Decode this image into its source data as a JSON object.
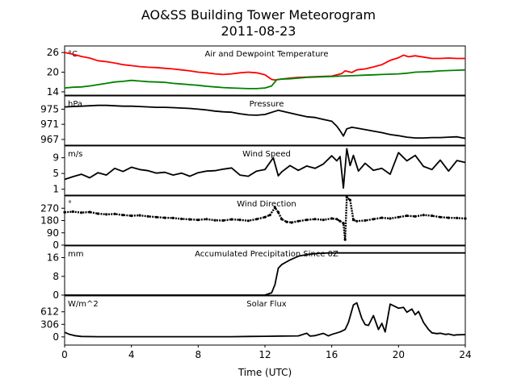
{
  "title": "AO&SS Building Tower Meteorogram",
  "subtitle": "2011-08-23",
  "chart_data": [
    {
      "type": "line",
      "title": "Air and Dewpoint Temperature",
      "unit": "°C",
      "xlim": [
        0,
        24
      ],
      "ylim": [
        13,
        28
      ],
      "yticks": [
        "14",
        "20",
        "26"
      ],
      "series": [
        {
          "color": "#ff0000",
          "x": [
            0,
            0.5,
            1,
            1.5,
            2,
            2.5,
            3,
            3.5,
            4,
            4.5,
            5,
            5.5,
            6,
            6.5,
            7,
            7.5,
            8,
            8.5,
            9,
            9.5,
            10,
            10.5,
            11,
            11.5,
            12,
            12.2,
            12.4,
            12.6,
            12.8,
            13.5,
            14,
            15,
            16,
            16.6,
            16.8,
            17.2,
            17.5,
            18,
            18.5,
            19,
            19.5,
            20,
            20.3,
            20.6,
            21,
            21.5,
            22,
            22.5,
            23,
            23.5,
            24
          ],
          "y": [
            26,
            25.5,
            24.8,
            24.3,
            23.5,
            23.2,
            22.8,
            22.3,
            22,
            21.7,
            21.5,
            21.4,
            21.2,
            21,
            20.7,
            20.4,
            20,
            19.8,
            19.5,
            19.3,
            19.5,
            19.8,
            20,
            19.8,
            19.2,
            18.5,
            17.8,
            17.6,
            17.8,
            18.2,
            18.4,
            18.6,
            18.8,
            19.6,
            20.4,
            19.9,
            20.7,
            21,
            21.6,
            22.3,
            23.6,
            24.4,
            25.2,
            24.7,
            25,
            24.6,
            24.2,
            24.2,
            24.3,
            24.2,
            24.2
          ]
        },
        {
          "color": "#008000",
          "x": [
            0,
            0.5,
            1,
            1.5,
            2,
            2.5,
            3,
            3.5,
            4,
            4.5,
            5,
            5.5,
            6,
            6.5,
            7,
            7.5,
            8,
            8.5,
            9,
            9.5,
            10,
            10.5,
            11,
            11.5,
            12,
            12.4,
            12.7,
            13,
            13.5,
            14,
            14.5,
            15,
            15.5,
            16,
            16.5,
            17,
            17.5,
            18,
            18.5,
            19,
            19.5,
            20,
            20.5,
            21,
            21.5,
            22,
            22.5,
            23,
            23.5,
            24
          ],
          "y": [
            15.2,
            15.4,
            15.5,
            15.8,
            16.2,
            16.6,
            17,
            17.2,
            17.5,
            17.3,
            17.1,
            17,
            16.9,
            16.6,
            16.4,
            16.2,
            16,
            15.7,
            15.5,
            15.3,
            15.2,
            15.1,
            15,
            15,
            15.2,
            15.8,
            17.7,
            17.9,
            18,
            18.2,
            18.4,
            18.5,
            18.6,
            18.7,
            18.8,
            18.9,
            19,
            19.1,
            19.2,
            19.3,
            19.4,
            19.5,
            19.7,
            20,
            20.1,
            20.2,
            20.4,
            20.5,
            20.6,
            20.7
          ]
        }
      ]
    },
    {
      "type": "line",
      "title": "Pressure",
      "unit": "hPa",
      "xlim": [
        0,
        24
      ],
      "ylim": [
        965.5,
        978.5
      ],
      "yticks": [
        "967",
        "971",
        "975"
      ],
      "series": [
        {
          "color": "#000000",
          "x": [
            0,
            0.5,
            1,
            1.5,
            2,
            2.5,
            3,
            3.5,
            4,
            4.5,
            5,
            5.5,
            6,
            6.5,
            7,
            7.5,
            8,
            8.5,
            9,
            9.5,
            10,
            10.5,
            11,
            11.5,
            12,
            12.5,
            12.8,
            13,
            13.5,
            14,
            14.5,
            15,
            15.5,
            16,
            16.3,
            16.5,
            16.7,
            16.9,
            17.2,
            17.5,
            18,
            18.5,
            19,
            19.5,
            20,
            20.5,
            21,
            21.5,
            22,
            22.5,
            23,
            23.5,
            24
          ],
          "y": [
            975.6,
            975.7,
            975.8,
            975.9,
            976,
            976,
            975.9,
            975.8,
            975.8,
            975.7,
            975.6,
            975.5,
            975.5,
            975.4,
            975.3,
            975.2,
            975,
            974.8,
            974.5,
            974.3,
            974.2,
            973.8,
            973.5,
            973.4,
            973.6,
            974.3,
            974.7,
            974.5,
            974,
            973.5,
            973,
            972.8,
            972.3,
            971.8,
            970.5,
            969.3,
            967.9,
            969.8,
            970.2,
            970,
            969.6,
            969.2,
            968.8,
            968.3,
            968,
            967.6,
            967.4,
            967.4,
            967.5,
            967.5,
            967.6,
            967.7,
            967.3
          ]
        }
      ]
    },
    {
      "type": "line",
      "title": "Wind Speed",
      "unit": "m/s",
      "xlim": [
        0,
        24
      ],
      "ylim": [
        -0.5,
        12
      ],
      "yticks": [
        "1",
        "5",
        "9"
      ],
      "series": [
        {
          "color": "#000000",
          "x": [
            0,
            0.5,
            1,
            1.5,
            2,
            2.5,
            3,
            3.5,
            4,
            4.5,
            5,
            5.5,
            6,
            6.5,
            7,
            7.5,
            8,
            8.5,
            9,
            9.5,
            10,
            10.5,
            11,
            11.5,
            12,
            12.5,
            12.8,
            13,
            13.5,
            14,
            14.5,
            15,
            15.5,
            16,
            16.3,
            16.5,
            16.7,
            16.9,
            17.1,
            17.3,
            17.6,
            18,
            18.5,
            19,
            19.5,
            20,
            20.5,
            21,
            21.5,
            22,
            22.5,
            23,
            23.5,
            24
          ],
          "y": [
            3.5,
            4.2,
            4.8,
            3.9,
            5.2,
            4.6,
            6.3,
            5.5,
            6.6,
            6,
            5.7,
            5.1,
            5.3,
            4.6,
            5.1,
            4.3,
            5.2,
            5.6,
            5.7,
            6.1,
            6.4,
            4.6,
            4.3,
            5.6,
            6,
            9,
            4.4,
            5.4,
            7,
            5.8,
            6.9,
            6.3,
            7.4,
            9.5,
            8.2,
            9.3,
            1.3,
            11.3,
            7,
            9.6,
            5.6,
            7.6,
            5.8,
            6.3,
            4.8,
            10.3,
            8.2,
            9.6,
            6.8,
            6,
            8.4,
            5.6,
            8.3,
            7.8
          ]
        }
      ]
    },
    {
      "type": "scatter",
      "title": "Wind Direction",
      "unit": "°",
      "xlim": [
        0,
        24
      ],
      "ylim": [
        0,
        360
      ],
      "yticks": [
        "0",
        "90",
        "180",
        "270"
      ],
      "series": [
        {
          "color": "#000000",
          "x": [
            0,
            0.5,
            1,
            1.5,
            2,
            2.5,
            3,
            3.5,
            4,
            4.5,
            5,
            5.5,
            6,
            6.5,
            7,
            7.5,
            8,
            8.5,
            9,
            9.5,
            10,
            10.5,
            11,
            11.5,
            12,
            12.3,
            12.6,
            12.8,
            13,
            13.3,
            13.6,
            14,
            14.5,
            15,
            15.5,
            16,
            16.3,
            16.5,
            16.7,
            16.8,
            16.9,
            17.1,
            17.3,
            17.5,
            18,
            18.5,
            19,
            19.5,
            20,
            20.5,
            21,
            21.5,
            22,
            22.5,
            23,
            23.5,
            24
          ],
          "y": [
            240,
            245,
            238,
            242,
            230,
            225,
            228,
            220,
            215,
            218,
            210,
            205,
            200,
            198,
            192,
            188,
            185,
            190,
            182,
            180,
            188,
            185,
            178,
            190,
            205,
            220,
            275,
            240,
            190,
            170,
            165,
            175,
            185,
            190,
            185,
            195,
            190,
            175,
            160,
            40,
            350,
            330,
            185,
            175,
            180,
            190,
            200,
            195,
            205,
            215,
            210,
            220,
            215,
            205,
            200,
            198,
            195
          ]
        }
      ]
    },
    {
      "type": "line",
      "title": "Accumulated Precipitation Since 0Z",
      "unit": "mm",
      "xlim": [
        0,
        24
      ],
      "ylim": [
        0,
        21
      ],
      "yticks": [
        "0",
        "8",
        "16"
      ],
      "series": [
        {
          "color": "#000000",
          "x": [
            0,
            12,
            12.4,
            12.6,
            12.8,
            13,
            13.5,
            14,
            14.5,
            15,
            15.5,
            16,
            17,
            24
          ],
          "y": [
            0,
            0,
            1,
            4.5,
            11.5,
            13,
            15,
            16.6,
            17.3,
            17.7,
            17.9,
            18,
            18,
            18
          ]
        }
      ]
    },
    {
      "type": "line",
      "title": "Solar Flux",
      "unit": "W/m^2",
      "xlim": [
        0,
        24
      ],
      "ylim": [
        -200,
        1000
      ],
      "yticks": [
        "0",
        "306",
        "612"
      ],
      "series": [
        {
          "color": "#000000",
          "x": [
            0,
            0.3,
            0.6,
            1,
            2,
            3,
            4,
            5,
            6,
            8,
            10,
            11,
            12,
            13,
            14,
            14.5,
            14.7,
            15,
            15.5,
            15.8,
            16,
            16.5,
            16.8,
            17,
            17.3,
            17.5,
            17.8,
            18,
            18.2,
            18.5,
            18.8,
            19,
            19.2,
            19.5,
            19.8,
            20,
            20.3,
            20.5,
            20.8,
            21,
            21.2,
            21.5,
            21.8,
            22,
            22.3,
            22.5,
            22.8,
            23,
            23.3,
            23.5,
            24
          ],
          "y": [
            110,
            60,
            30,
            10,
            5,
            5,
            5,
            5,
            5,
            5,
            5,
            10,
            15,
            20,
            25,
            90,
            20,
            30,
            85,
            25,
            60,
            120,
            180,
            350,
            780,
            830,
            450,
            300,
            280,
            520,
            180,
            330,
            120,
            800,
            740,
            700,
            720,
            600,
            680,
            540,
            620,
            350,
            180,
            100,
            80,
            90,
            60,
            70,
            40,
            50,
            55
          ]
        }
      ]
    }
  ],
  "xaxis": {
    "label": "Time (UTC)",
    "range": [
      0,
      24
    ],
    "ticks": [
      "0",
      "4",
      "8",
      "12",
      "16",
      "20",
      "24"
    ]
  }
}
